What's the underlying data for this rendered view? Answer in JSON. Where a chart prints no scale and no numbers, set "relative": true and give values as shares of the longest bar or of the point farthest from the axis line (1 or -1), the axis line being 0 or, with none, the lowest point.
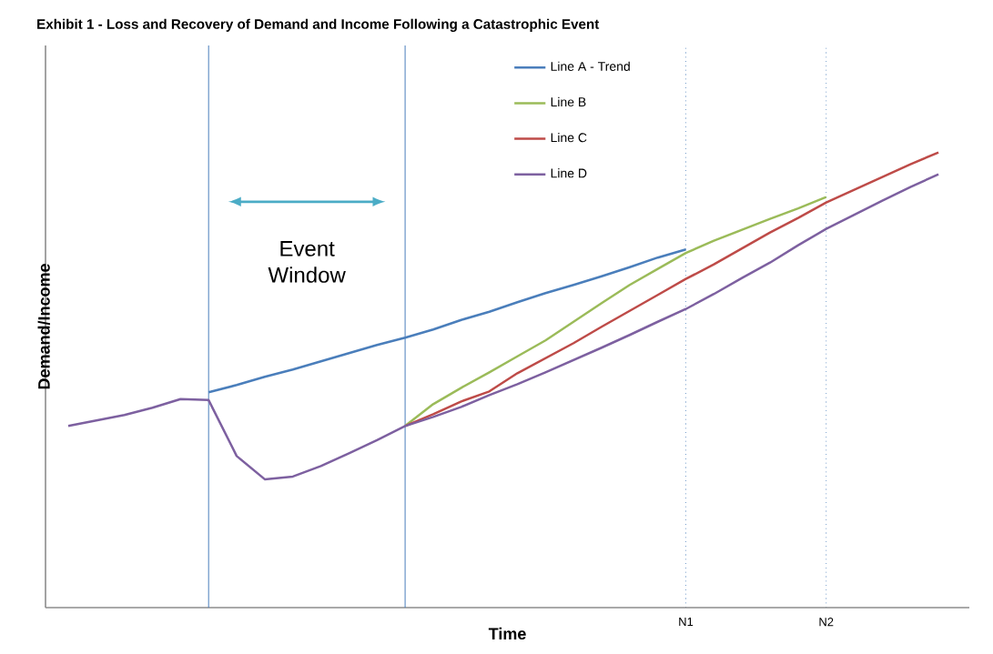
{
  "chart_data": {
    "type": "line",
    "title": "Exhibit 1 - Loss and Recovery of Demand and Income Following a Catastrophic Event",
    "xlabel": "Time",
    "ylabel": "Demand/Income",
    "relative": true,
    "legend": "top",
    "categories": [
      null,
      null,
      null,
      null,
      null,
      null,
      null,
      null,
      null,
      null,
      null,
      null,
      null,
      null,
      null,
      null,
      null,
      null,
      null,
      null,
      null,
      null,
      "N1",
      null,
      null,
      null,
      null,
      "N2",
      null,
      null,
      null,
      null
    ],
    "series": [
      {
        "name": "Line A - Trend",
        "color": "#4a7ebb",
        "values": [
          null,
          null,
          null,
          null,
          null,
          0.473,
          0.489,
          0.507,
          0.523,
          0.541,
          0.559,
          0.577,
          0.593,
          0.611,
          0.632,
          0.65,
          0.671,
          0.691,
          0.709,
          0.728,
          0.748,
          0.769,
          0.787,
          null,
          null,
          null,
          null,
          null,
          null,
          null,
          null,
          null
        ]
      },
      {
        "name": "Line B",
        "color": "#9bbb59",
        "values": [
          null,
          null,
          null,
          null,
          null,
          null,
          null,
          null,
          null,
          null,
          null,
          null,
          0.399,
          0.447,
          0.483,
          0.517,
          0.552,
          0.587,
          0.628,
          0.669,
          0.709,
          0.744,
          0.779,
          0.806,
          0.83,
          0.854,
          0.877,
          0.902,
          null,
          null,
          null,
          null
        ]
      },
      {
        "name": "Line C",
        "color": "#be4b48",
        "values": [
          null,
          null,
          null,
          null,
          null,
          null,
          null,
          null,
          null,
          null,
          null,
          null,
          0.399,
          0.425,
          0.453,
          0.475,
          0.515,
          0.548,
          0.581,
          0.617,
          0.652,
          0.687,
          0.722,
          0.754,
          0.789,
          0.824,
          0.856,
          0.89,
          0.918,
          0.946,
          0.974,
          1.0
        ]
      },
      {
        "name": "Line D",
        "color": "#7d60a0",
        "values": [
          0.399,
          0.411,
          0.423,
          0.439,
          0.458,
          0.456,
          0.333,
          0.282,
          0.288,
          0.311,
          0.339,
          0.368,
          0.399,
          0.419,
          0.441,
          0.467,
          0.491,
          0.517,
          0.544,
          0.571,
          0.599,
          0.628,
          0.656,
          0.689,
          0.724,
          0.758,
          0.796,
          0.832,
          0.863,
          0.894,
          0.924,
          0.952
        ]
      }
    ],
    "grid": "x",
    "annotations": [
      "Event Window"
    ]
  }
}
